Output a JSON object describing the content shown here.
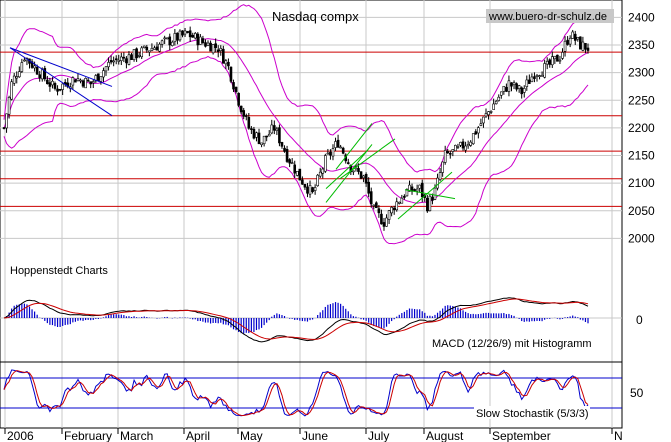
{
  "chart_data": [
    {
      "type": "candlestick",
      "title": "Nasdaq compx",
      "source_label": "www.buero-dr-schulz.de",
      "credit": "Hoppenstedt Charts",
      "y_ticks": [
        "2400",
        "2350",
        "2300",
        "2250",
        "2200",
        "2150",
        "2100",
        "2050",
        "2000"
      ],
      "ylim": [
        1960,
        2420
      ],
      "x_labels": [
        "2006",
        "February",
        "March",
        "April",
        "May",
        "June",
        "July",
        "August",
        "September",
        "N"
      ],
      "overlays": [
        "Bollinger bands",
        "horizontal support/resistance lines",
        "trend channels"
      ],
      "horizontal_levels": [
        2337,
        2222,
        2158,
        2108,
        2058
      ],
      "colors": {
        "candles": "#000000",
        "bollinger": "#cc00cc",
        "levels": "#cc0000",
        "channel": "#00bb00",
        "wedge": "#0000cc",
        "grid": "#c8c8c8"
      },
      "close_approx": [
        {
          "month": "Jan",
          "value": 2305
        },
        {
          "month": "Feb",
          "value": 2280
        },
        {
          "month": "Mar",
          "value": 2338
        },
        {
          "month": "Apr",
          "value": 2322
        },
        {
          "month": "May",
          "value": 2178
        },
        {
          "month": "Jun",
          "value": 2172
        },
        {
          "month": "Jul",
          "value": 2092
        },
        {
          "month": "Aug",
          "value": 2183
        },
        {
          "month": "Sep",
          "value": 2258
        },
        {
          "month": "Oct",
          "value": 2345
        }
      ],
      "last_value_approx": 2345
    },
    {
      "type": "bar+line",
      "title": "MACD (12/26/9) mit Histogramm",
      "y_ticks": [
        "0"
      ],
      "colors": {
        "histogram": "#0000cc",
        "macd": "#000000",
        "signal": "#cc0000"
      }
    },
    {
      "type": "line",
      "title": "Slow Stochastik (5/3/3)",
      "y_ticks": [
        "50"
      ],
      "levels": [
        80,
        20
      ],
      "colors": {
        "k_line": "#0000cc",
        "d_line": "#cc0000"
      }
    }
  ]
}
